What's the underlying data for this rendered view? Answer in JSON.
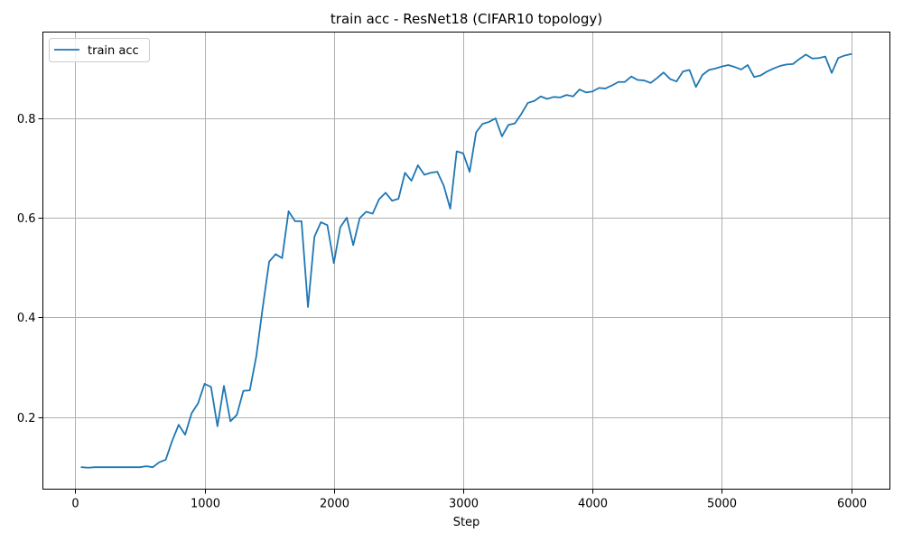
{
  "chart_data": {
    "type": "line",
    "title": "train acc - ResNet18 (CIFAR10 topology)",
    "xlabel": "Step",
    "ylabel": "",
    "xlim": [
      -250,
      6300
    ],
    "ylim": [
      0.056,
      0.972
    ],
    "xticks": [
      0,
      1000,
      2000,
      3000,
      4000,
      5000,
      6000
    ],
    "yticks": [
      0.2,
      0.4,
      0.6,
      0.8
    ],
    "xtick_labels": [
      "0",
      "1000",
      "2000",
      "3000",
      "4000",
      "5000",
      "6000"
    ],
    "ytick_labels": [
      "0.2",
      "0.4",
      "0.6",
      "0.8"
    ],
    "grid": true,
    "legend_position": "top-left",
    "series": [
      {
        "name": "train acc",
        "color": "#1f77b4",
        "x": [
          50,
          100,
          150,
          200,
          250,
          300,
          350,
          400,
          450,
          500,
          550,
          600,
          650,
          700,
          750,
          800,
          850,
          900,
          950,
          1000,
          1050,
          1100,
          1150,
          1200,
          1250,
          1300,
          1350,
          1400,
          1450,
          1500,
          1550,
          1600,
          1650,
          1700,
          1750,
          1800,
          1850,
          1900,
          1950,
          2000,
          2050,
          2100,
          2150,
          2200,
          2250,
          2300,
          2350,
          2400,
          2450,
          2500,
          2550,
          2600,
          2650,
          2700,
          2750,
          2800,
          2850,
          2900,
          2950,
          3000,
          3050,
          3100,
          3150,
          3200,
          3250,
          3300,
          3350,
          3400,
          3450,
          3500,
          3550,
          3600,
          3650,
          3700,
          3750,
          3800,
          3850,
          3900,
          3950,
          4000,
          4050,
          4100,
          4150,
          4200,
          4250,
          4300,
          4350,
          4400,
          4450,
          4500,
          4550,
          4600,
          4650,
          4700,
          4750,
          4800,
          4850,
          4900,
          4950,
          5000,
          5050,
          5100,
          5150,
          5200,
          5250,
          5300,
          5350,
          5400,
          5450,
          5500,
          5550,
          5600,
          5650,
          5700,
          5750,
          5800,
          5850,
          5900,
          5950,
          6000
        ],
        "y": [
          0.1,
          0.099,
          0.1,
          0.1,
          0.1,
          0.1,
          0.1,
          0.1,
          0.1,
          0.1,
          0.102,
          0.1,
          0.11,
          0.115,
          0.153,
          0.185,
          0.165,
          0.208,
          0.228,
          0.267,
          0.261,
          0.182,
          0.263,
          0.192,
          0.205,
          0.253,
          0.254,
          0.322,
          0.42,
          0.512,
          0.527,
          0.519,
          0.613,
          0.593,
          0.593,
          0.421,
          0.562,
          0.591,
          0.585,
          0.509,
          0.581,
          0.6,
          0.545,
          0.599,
          0.612,
          0.608,
          0.637,
          0.65,
          0.634,
          0.638,
          0.69,
          0.674,
          0.705,
          0.686,
          0.69,
          0.692,
          0.664,
          0.618,
          0.733,
          0.729,
          0.692,
          0.771,
          0.788,
          0.792,
          0.799,
          0.763,
          0.786,
          0.789,
          0.808,
          0.83,
          0.834,
          0.843,
          0.838,
          0.842,
          0.841,
          0.846,
          0.843,
          0.857,
          0.851,
          0.853,
          0.86,
          0.859,
          0.865,
          0.872,
          0.872,
          0.883,
          0.876,
          0.875,
          0.87,
          0.88,
          0.891,
          0.878,
          0.873,
          0.893,
          0.896,
          0.862,
          0.886,
          0.896,
          0.899,
          0.903,
          0.906,
          0.902,
          0.897,
          0.906,
          0.882,
          0.885,
          0.893,
          0.899,
          0.904,
          0.907,
          0.908,
          0.918,
          0.927,
          0.919,
          0.92,
          0.923,
          0.89,
          0.92,
          0.925,
          0.928
        ]
      }
    ]
  }
}
